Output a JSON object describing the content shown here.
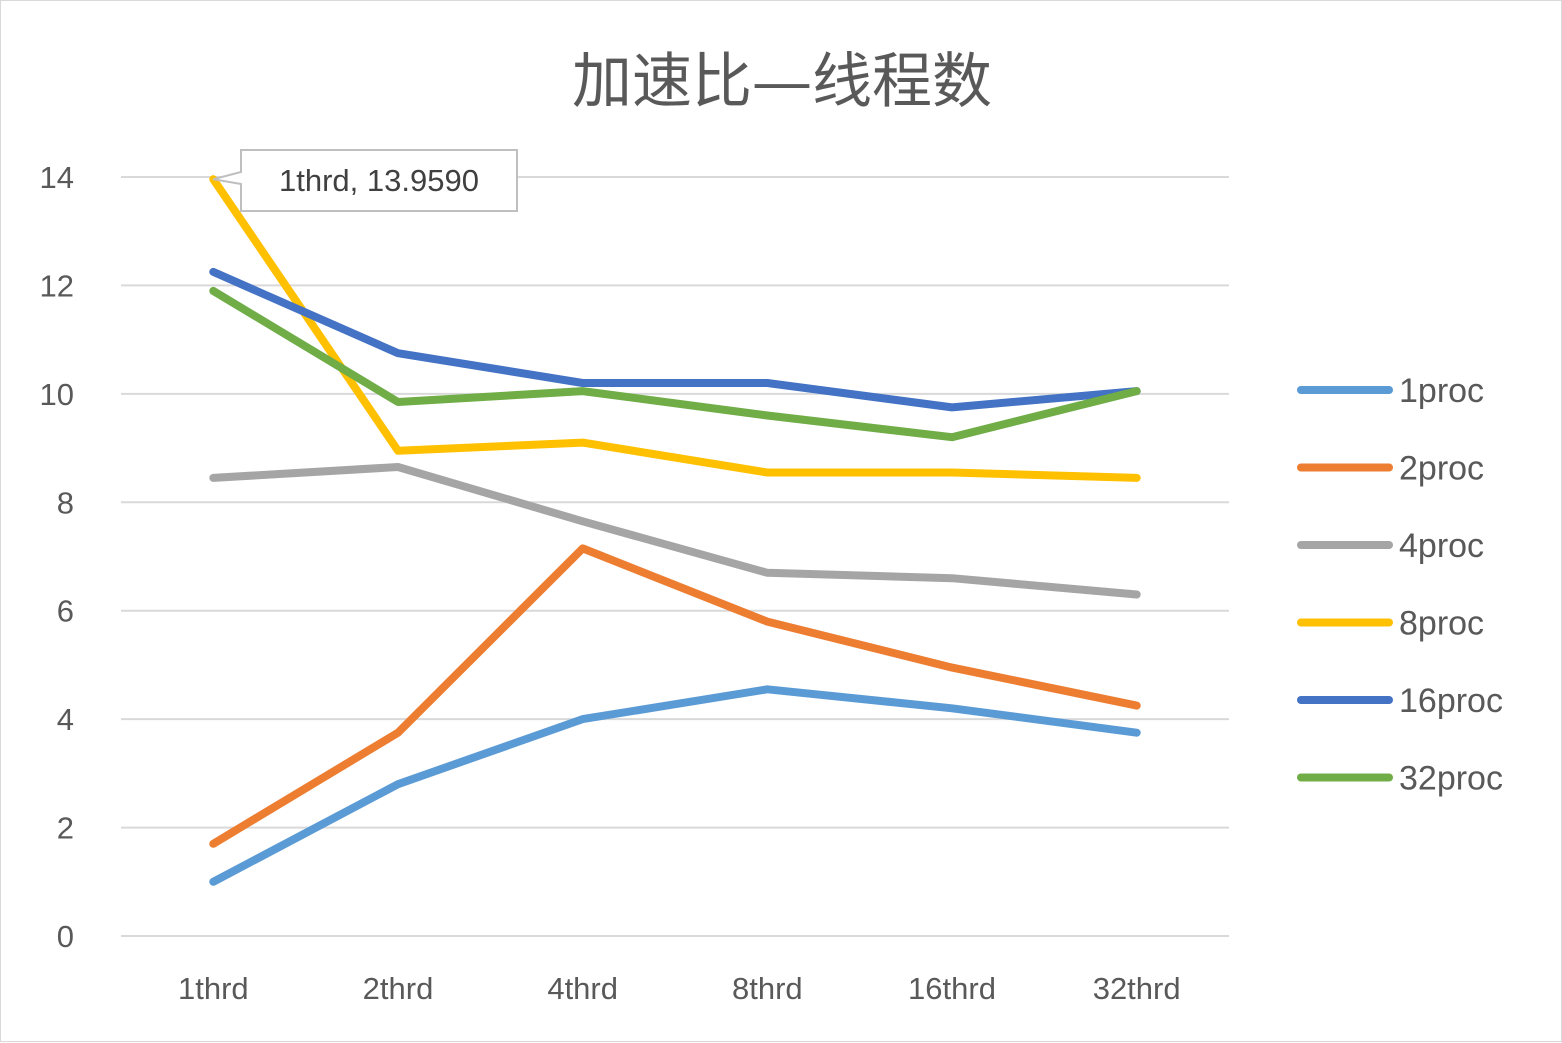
{
  "chart_data": {
    "type": "line",
    "title": "加速比—线程数",
    "categories": [
      "1thrd",
      "2thrd",
      "4thrd",
      "8thrd",
      "16thrd",
      "32thrd"
    ],
    "ylim": [
      0,
      14
    ],
    "yticks": [
      0,
      2,
      4,
      6,
      8,
      10,
      12,
      14
    ],
    "grid": true,
    "legend_position": "right",
    "series": [
      {
        "name": "1proc",
        "color": "#5B9BD5",
        "values": [
          1.0,
          2.8,
          4.0,
          4.55,
          4.2,
          3.75
        ]
      },
      {
        "name": "2proc",
        "color": "#ED7D31",
        "values": [
          1.7,
          3.75,
          7.15,
          5.8,
          4.95,
          4.25
        ]
      },
      {
        "name": "4proc",
        "color": "#A5A5A5",
        "values": [
          8.45,
          8.65,
          7.65,
          6.7,
          6.6,
          6.3
        ]
      },
      {
        "name": "8proc",
        "color": "#FFC000",
        "values": [
          13.959,
          8.95,
          9.1,
          8.55,
          8.55,
          8.45
        ]
      },
      {
        "name": "16proc",
        "color": "#4472C4",
        "values": [
          12.25,
          10.75,
          10.2,
          10.2,
          9.75,
          10.05
        ]
      },
      {
        "name": "32proc",
        "color": "#70AD47",
        "values": [
          11.9,
          9.85,
          10.05,
          9.6,
          9.2,
          10.05
        ]
      }
    ],
    "annotation": {
      "text": "1thrd, 13.9590",
      "series": "8proc",
      "category": "1thrd",
      "value": 13.959
    }
  }
}
